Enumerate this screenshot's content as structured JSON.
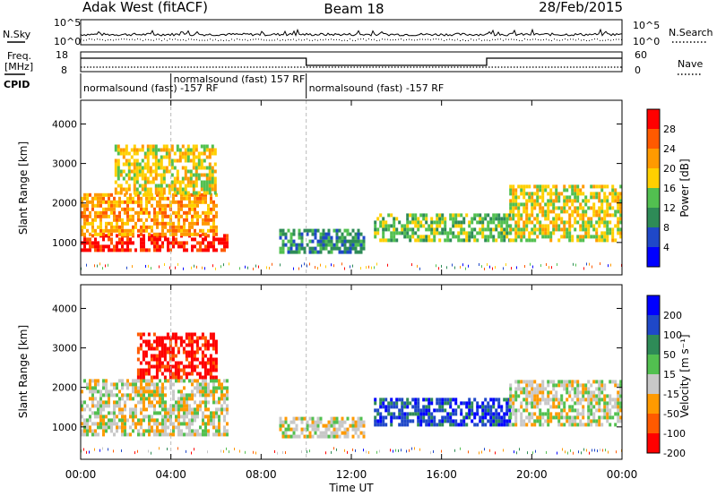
{
  "header": {
    "station": "Adak West (fitACF)",
    "beam": "Beam 18",
    "date": "28/Feb/2015"
  },
  "noise_panel": {
    "left_label": "N.Sky",
    "right_label": "N.Search",
    "tick_top": "10^5",
    "tick_bottom": "10^0"
  },
  "freq_panel": {
    "left_label_1": "Freq.",
    "left_label_2": "[MHz]",
    "left_tick_top": "18",
    "left_tick_bottom": "8",
    "right_label": "Nave",
    "right_tick_top": "60",
    "right_tick_bottom": "0",
    "cpid_label": "CPID",
    "cpid_segments": [
      {
        "label": "normalsound (fast) -157 RF",
        "start_hour": 0,
        "end_hour": 4
      },
      {
        "label": "normalsound (fast) 157 RF",
        "start_hour": 4,
        "end_hour": 10
      },
      {
        "label": "normalsound (fast) -157 RF",
        "start_hour": 10,
        "end_hour": 24
      }
    ]
  },
  "chart_data": [
    {
      "type": "heatmap",
      "name": "power",
      "ylabel": "Slant Range [km]",
      "ylim": [
        180,
        4600
      ],
      "yticks": [
        1000,
        2000,
        3000,
        4000
      ],
      "xlim": [
        0,
        24
      ],
      "colorbar": {
        "label": "Power [dB]",
        "ticks": [
          "4",
          "8",
          "12",
          "16",
          "20",
          "24",
          "28"
        ],
        "colors": [
          "#0000ff",
          "#1f48c8",
          "#2e8b57",
          "#52c050",
          "#ffd000",
          "#ff9a00",
          "#ff5a00",
          "#ff0000"
        ]
      },
      "regions": [
        {
          "t0": 0.0,
          "t1": 6.5,
          "r0": 850,
          "r1": 1250,
          "level": 7
        },
        {
          "t0": 0.0,
          "t1": 6.0,
          "r0": 1250,
          "r1": 2300,
          "level": 5
        },
        {
          "t0": 1.5,
          "t1": 6.0,
          "r0": 2300,
          "r1": 3500,
          "level": 4
        },
        {
          "t0": 8.8,
          "t1": 12.5,
          "r0": 800,
          "r1": 1350,
          "level": 2
        },
        {
          "t0": 13.0,
          "t1": 19.0,
          "r0": 1100,
          "r1": 1800,
          "level": 3
        },
        {
          "t0": 19.0,
          "t1": 24.0,
          "r0": 1100,
          "r1": 2500,
          "level": 4
        }
      ]
    },
    {
      "type": "heatmap",
      "name": "velocity",
      "ylabel": "Slant Range [km]",
      "ylim": [
        180,
        4600
      ],
      "yticks": [
        1000,
        2000,
        3000,
        4000
      ],
      "xlim": [
        0,
        24
      ],
      "colorbar": {
        "label": "Velocity [m s⁻¹]",
        "ticks": [
          "200",
          "100",
          "50",
          "15",
          "-15",
          "-50",
          "-100",
          "-200"
        ],
        "colors": [
          "#0000ff",
          "#1f48c8",
          "#2e8b57",
          "#52c050",
          "#c8c8c8",
          "#ff9a00",
          "#ff5a00",
          "#ff0000"
        ]
      },
      "regions": [
        {
          "t0": 0.0,
          "t1": 6.5,
          "r0": 850,
          "r1": 2300,
          "level": 4
        },
        {
          "t0": 2.5,
          "t1": 6.0,
          "r0": 2300,
          "r1": 3400,
          "level": 7
        },
        {
          "t0": 8.8,
          "t1": 12.5,
          "r0": 800,
          "r1": 1300,
          "level": 4
        },
        {
          "t0": 13.0,
          "t1": 19.0,
          "r0": 1100,
          "r1": 1800,
          "level": 1
        },
        {
          "t0": 19.0,
          "t1": 24.0,
          "r0": 1100,
          "r1": 2200,
          "level": 4
        }
      ]
    }
  ],
  "x_axis": {
    "label": "Time UT",
    "ticks": [
      "00:00",
      "04:00",
      "08:00",
      "12:00",
      "16:00",
      "20:00",
      "00:00"
    ]
  }
}
